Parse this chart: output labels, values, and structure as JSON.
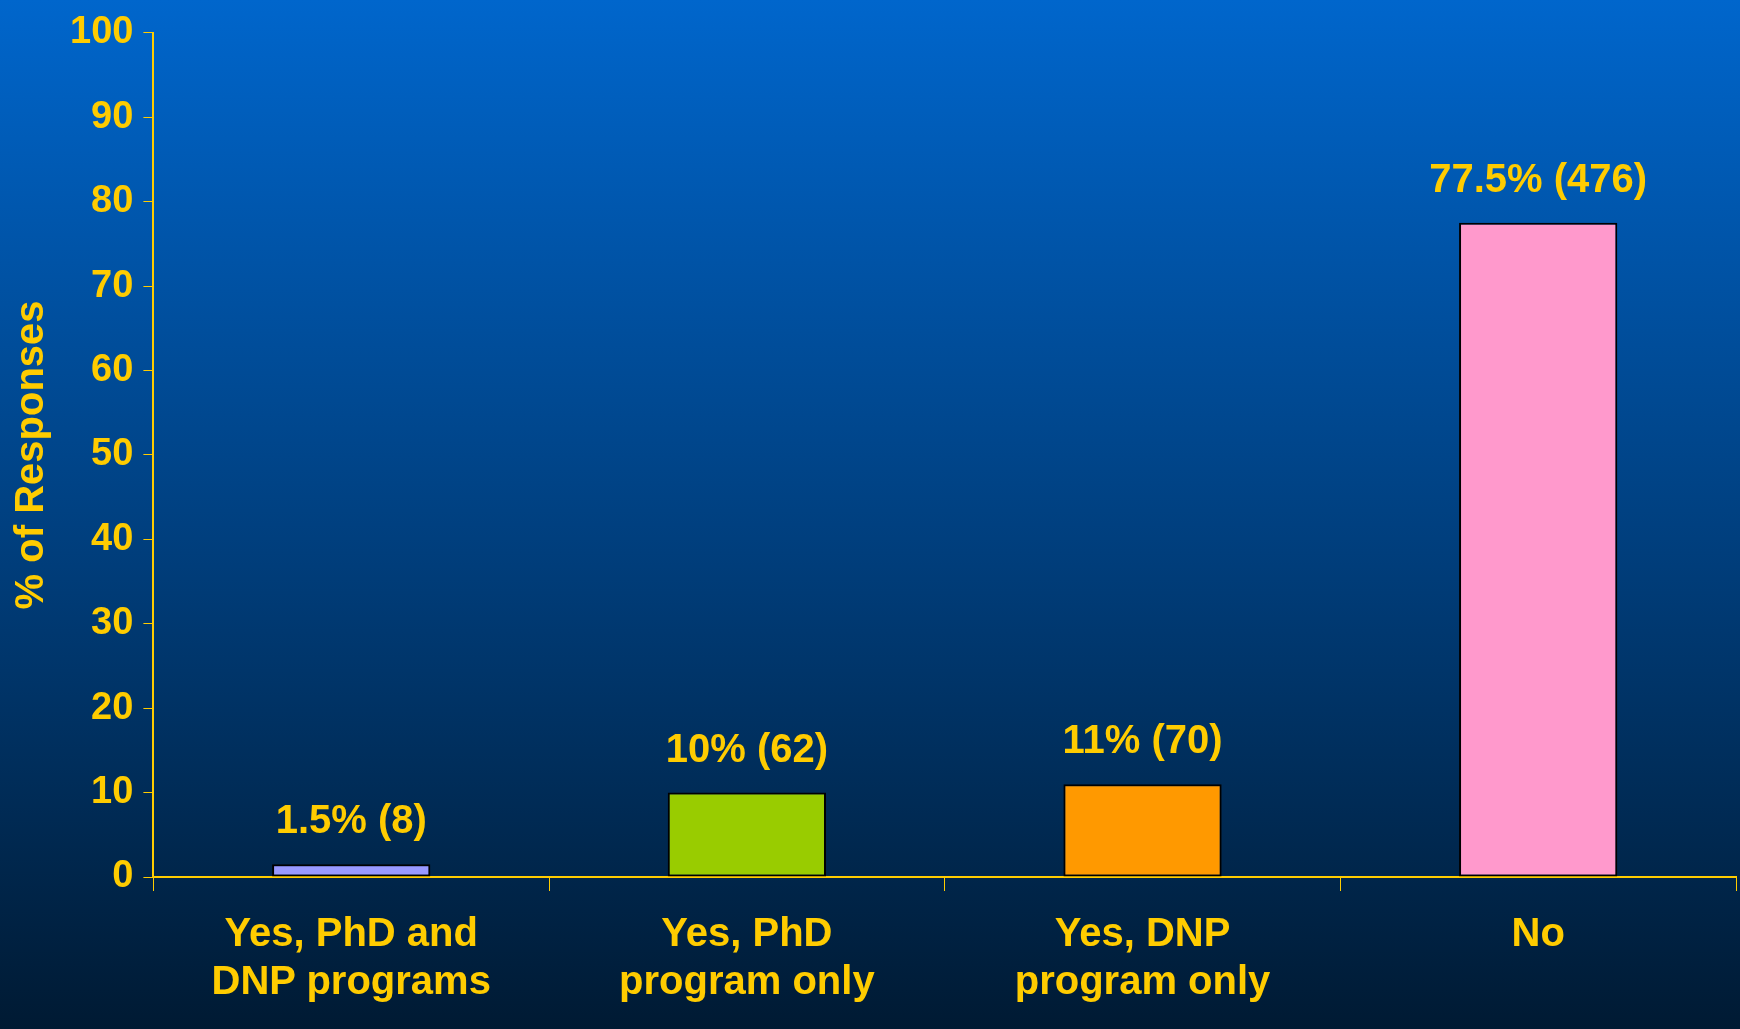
{
  "chart_data": {
    "type": "bar",
    "ylabel": "% of Responses",
    "categories": [
      "Yes, PhD and DNP programs",
      "Yes, PhD program only",
      "Yes, DNP program only",
      "No"
    ],
    "values": [
      1.5,
      10,
      11,
      77.5
    ],
    "colors": [
      "#9999ff",
      "#99cc00",
      "#ff9900",
      "#ff99cc"
    ],
    "value_labels": [
      "1.5% (8)",
      "10% (62)",
      "11% (70)",
      "77.5% (476)"
    ],
    "ylim": [
      0,
      100
    ],
    "yticks": [
      0,
      10,
      20,
      30,
      40,
      50,
      60,
      70,
      80,
      90,
      100
    ]
  }
}
